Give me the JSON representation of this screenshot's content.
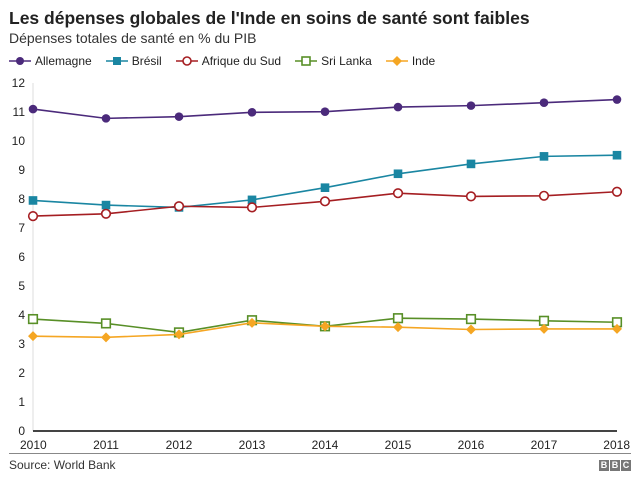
{
  "title": "Les dépenses globales de l'Inde en soins de santé sont faibles",
  "subtitle": "Dépenses totales de santé en % du PIB",
  "source": "Source: World Bank",
  "logo": "BBC",
  "chart_data": {
    "type": "line",
    "title": "Les dépenses globales de l'Inde en soins de santé sont faibles",
    "subtitle": "Dépenses totales de santé en % du PIB",
    "x": [
      "2010",
      "2011",
      "2012",
      "2013",
      "2014",
      "2015",
      "2016",
      "2017",
      "2018"
    ],
    "ylim": [
      0,
      12
    ],
    "yticks": [
      "0",
      "1",
      "2",
      "3",
      "4",
      "5",
      "6",
      "7",
      "8",
      "9",
      "10",
      "11",
      "12"
    ],
    "grid": false,
    "legend": "top-left",
    "series": [
      {
        "name": "Allemagne",
        "color": "#4b2a7b",
        "marker": "filled-circle",
        "values": [
          11.1,
          10.78,
          10.84,
          10.99,
          11.01,
          11.17,
          11.22,
          11.32,
          11.43
        ]
      },
      {
        "name": "Brésil",
        "color": "#1a86a2",
        "marker": "filled-square",
        "values": [
          7.95,
          7.79,
          7.71,
          7.97,
          8.39,
          8.87,
          9.21,
          9.47,
          9.51
        ]
      },
      {
        "name": "Afrique du Sud",
        "color": "#a51e22",
        "marker": "open-circle",
        "values": [
          7.41,
          7.49,
          7.75,
          7.71,
          7.92,
          8.2,
          8.09,
          8.11,
          8.25
        ]
      },
      {
        "name": "Sri Lanka",
        "color": "#588f27",
        "marker": "open-square",
        "values": [
          3.86,
          3.71,
          3.4,
          3.82,
          3.61,
          3.89,
          3.86,
          3.8,
          3.75
        ]
      },
      {
        "name": "Inde",
        "color": "#f5a623",
        "marker": "filled-diamond",
        "values": [
          3.27,
          3.23,
          3.33,
          3.73,
          3.61,
          3.58,
          3.5,
          3.52,
          3.52
        ]
      }
    ]
  }
}
